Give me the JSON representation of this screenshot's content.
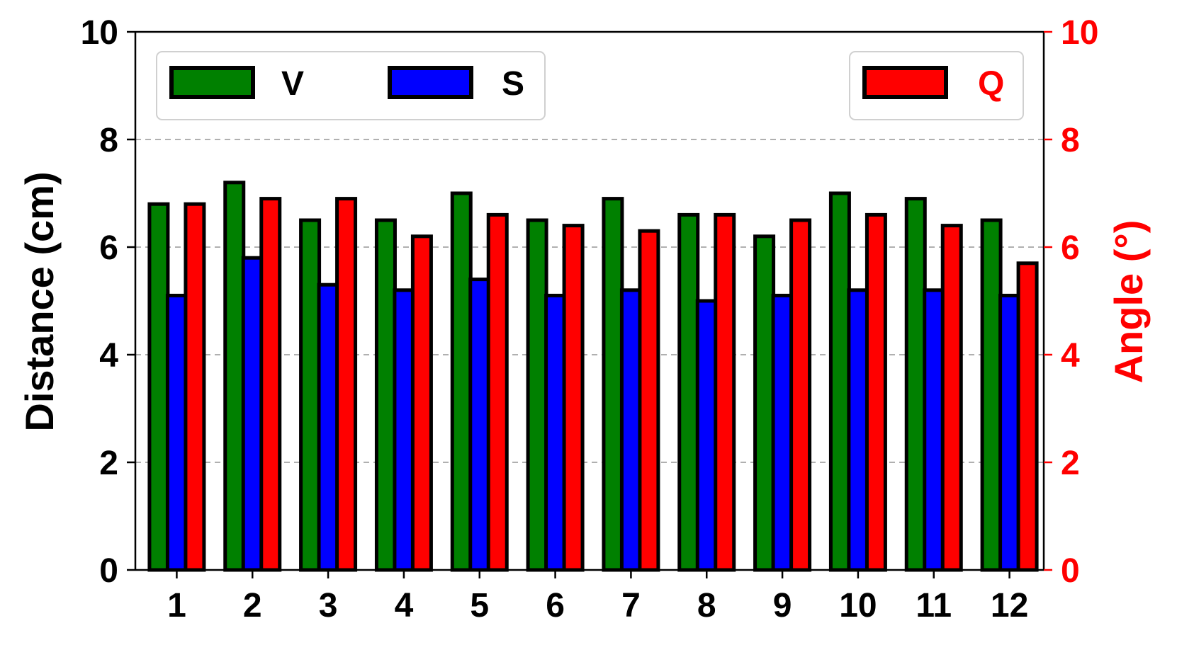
{
  "chart_data": {
    "type": "bar",
    "categories": [
      "1",
      "2",
      "3",
      "4",
      "5",
      "6",
      "7",
      "8",
      "9",
      "10",
      "11",
      "12"
    ],
    "series": [
      {
        "name": "V",
        "axis": "left",
        "color": "#008000",
        "values": [
          6.8,
          7.2,
          6.5,
          6.5,
          7.0,
          6.5,
          6.9,
          6.6,
          6.2,
          7.0,
          6.9,
          6.5
        ]
      },
      {
        "name": "S",
        "axis": "left",
        "color": "#0000ff",
        "values": [
          5.1,
          5.8,
          5.3,
          5.2,
          5.4,
          5.1,
          5.2,
          5.0,
          5.1,
          5.2,
          5.2,
          5.1
        ]
      },
      {
        "name": "Q",
        "axis": "right",
        "color": "#ff0000",
        "values": [
          6.8,
          6.9,
          6.9,
          6.2,
          6.6,
          6.4,
          6.3,
          6.6,
          6.5,
          6.6,
          6.4,
          5.7
        ]
      }
    ],
    "xlabel": "",
    "ylabel": "Distance (cm)",
    "ylabel_right": "Angle (°)",
    "ylabel_right_color": "#ff0000",
    "ylim": [
      0,
      10
    ],
    "ylim_right": [
      0,
      10
    ],
    "yticks": [
      "0",
      "2",
      "4",
      "6",
      "8",
      "10"
    ],
    "yticks_right": [
      "0",
      "2",
      "4",
      "6",
      "8",
      "10"
    ],
    "grid": "horizontal dashed",
    "legend_left": {
      "placement": "top-left",
      "entries": [
        "V",
        "S"
      ]
    },
    "legend_right": {
      "placement": "top-right",
      "entries": [
        "Q"
      ]
    }
  }
}
